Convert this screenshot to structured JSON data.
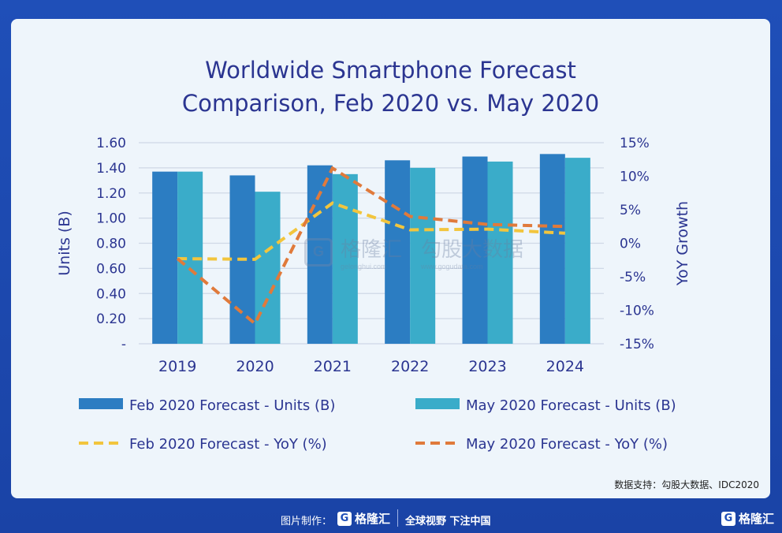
{
  "chart_data": {
    "type": "bar",
    "title_line1": "Worldwide Smartphone Forecast",
    "title_line2": "Comparison, Feb 2020 vs. May 2020",
    "categories": [
      "2019",
      "2020",
      "2021",
      "2022",
      "2023",
      "2024"
    ],
    "ylabel_left": "Units (B)",
    "ylabel_right": "YoY Growth",
    "ylim_left": [
      0,
      1.6
    ],
    "ylim_right": [
      -15,
      15
    ],
    "yticks_left": [
      "-",
      "0.20",
      "0.40",
      "0.60",
      "0.80",
      "1.00",
      "1.20",
      "1.40",
      "1.60"
    ],
    "yticks_right": [
      "-15%",
      "-10%",
      "-5%",
      "0%",
      "5%",
      "10%",
      "15%"
    ],
    "grid": true,
    "legend_position": "bottom",
    "series": [
      {
        "name": "Feb 2020 Forecast - Units (B)",
        "kind": "bar",
        "axis": "left",
        "color": "#2c7dc2",
        "values": [
          1.37,
          1.34,
          1.42,
          1.46,
          1.49,
          1.51
        ]
      },
      {
        "name": "May 2020 Forecast - Units (B)",
        "kind": "bar",
        "axis": "left",
        "color": "#3aacc9",
        "values": [
          1.37,
          1.21,
          1.35,
          1.4,
          1.45,
          1.48
        ]
      },
      {
        "name": "Feb 2020 Forecast - YoY (%)",
        "kind": "line",
        "axis": "right",
        "color": "#f2c53d",
        "values": [
          -2.3,
          -2.4,
          6.0,
          2.0,
          2.1,
          1.5
        ]
      },
      {
        "name": "May 2020 Forecast - YoY (%)",
        "kind": "line",
        "axis": "right",
        "color": "#e07a3b",
        "values": [
          -2.3,
          -12.0,
          11.2,
          4.0,
          2.8,
          2.5
        ]
      }
    ]
  },
  "watermark": {
    "brand": "格隆汇",
    "brand_sub": "gelonghui.com",
    "partner": "勾股大数据",
    "partner_sub": "www.gogudata.com"
  },
  "source": "数据支持：勾股大数据、IDC2020",
  "footer": {
    "made_by": "图片制作：",
    "brand": "格隆汇",
    "slogan": "全球视野 下注中国",
    "brand_right": "格隆汇",
    "logo_glyph": "G"
  }
}
